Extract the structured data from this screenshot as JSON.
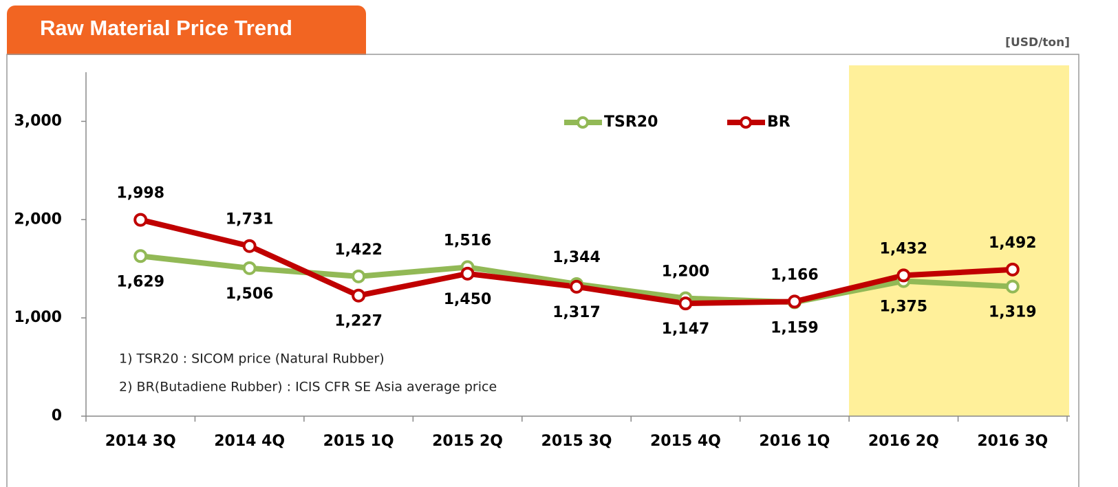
{
  "title": "Raw Material Price Trend",
  "unit": "[USD/ton]",
  "notes": [
    "1) TSR20 : SICOM price  (Natural Rubber)",
    "2) BR(Butadiene Rubber) : ICIS CFR SE Asia average price"
  ],
  "chart_data": {
    "type": "line",
    "categories": [
      "2014 3Q",
      "2014 4Q",
      "2015 1Q",
      "2015 2Q",
      "2015 3Q",
      "2015 4Q",
      "2016 1Q",
      "2016 2Q",
      "2016 3Q"
    ],
    "series": [
      {
        "name": "TSR20",
        "color": "#92b956",
        "values": [
          1629,
          1506,
          1422,
          1516,
          1344,
          1200,
          1159,
          1375,
          1319
        ],
        "value_labels": [
          "1,629",
          "1,506",
          "1,422",
          "1,516",
          "1,344",
          "1,200",
          "1,159",
          "1,375",
          "1,319"
        ]
      },
      {
        "name": "BR",
        "color": "#c00000",
        "values": [
          1998,
          1731,
          1227,
          1450,
          1317,
          1147,
          1166,
          1432,
          1492
        ],
        "value_labels": [
          "1,998",
          "1,731",
          "1,227",
          "1,450",
          "1,317",
          "1,147",
          "1,166",
          "1,432",
          "1,492"
        ]
      }
    ],
    "ylim": [
      0,
      3500
    ],
    "yticks": [
      0,
      {
        "value": 1000,
        "label": "1,000"
      },
      {
        "value": 2000,
        "label": "2,000"
      },
      {
        "value": 3000,
        "label": "3,000"
      }
    ],
    "legend": "top"
  }
}
